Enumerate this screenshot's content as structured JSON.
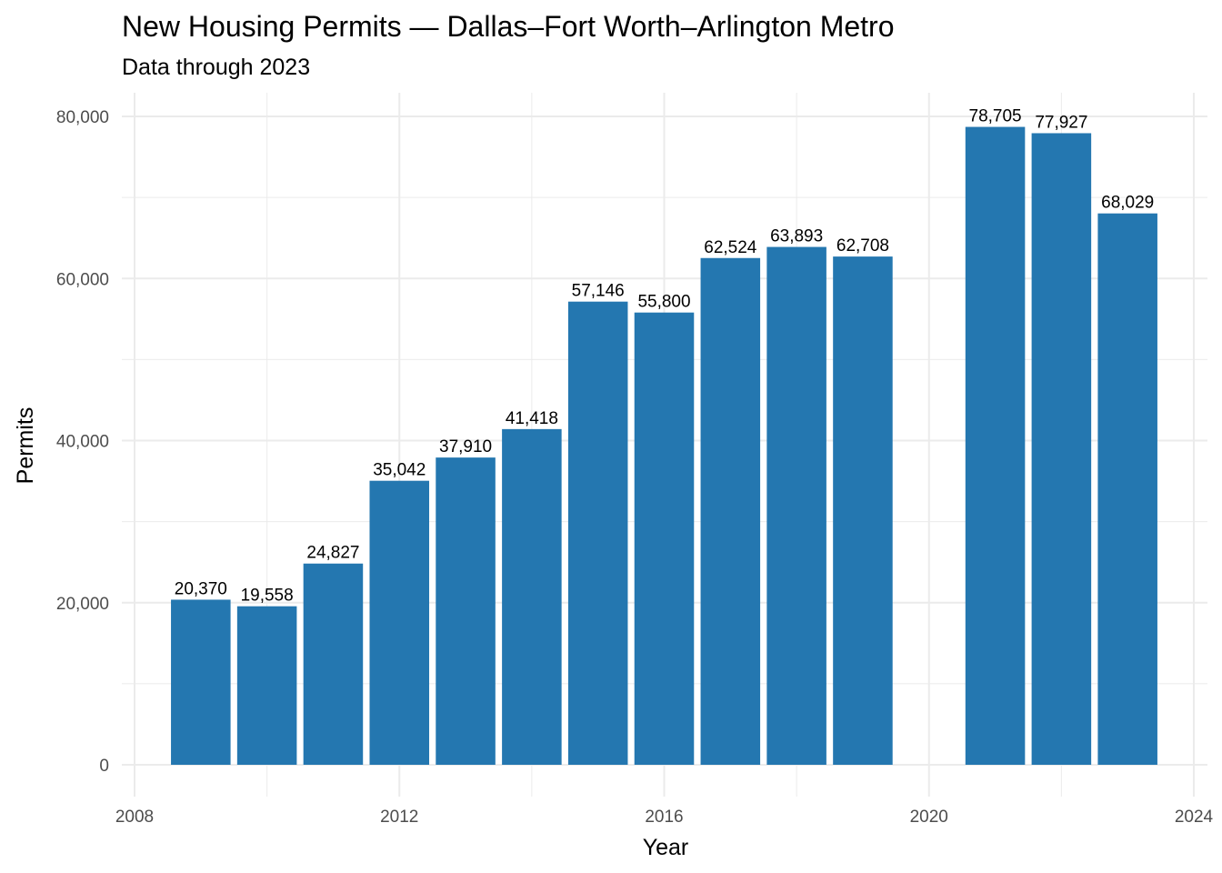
{
  "chart_data": {
    "type": "bar",
    "title": "New Housing Permits — Dallas–Fort Worth–Arlington Metro",
    "subtitle": "Data through 2023",
    "xlabel": "Year",
    "ylabel": "Permits",
    "x": [
      2009,
      2010,
      2011,
      2012,
      2013,
      2014,
      2015,
      2016,
      2017,
      2018,
      2019,
      2021,
      2022,
      2023
    ],
    "values": [
      20370,
      19558,
      24827,
      35042,
      37910,
      41418,
      57146,
      55800,
      62524,
      63893,
      62708,
      78705,
      77927,
      68029
    ],
    "value_labels": [
      "20,370",
      "19,558",
      "24,827",
      "35,042",
      "37,910",
      "41,418",
      "57,146",
      "55,800",
      "62,524",
      "63,893",
      "62,708",
      "78,705",
      "77,927",
      "68,029"
    ],
    "xlim": [
      2008,
      2024
    ],
    "ylim": [
      0,
      80000
    ],
    "x_ticks": [
      2008,
      2012,
      2016,
      2020,
      2024
    ],
    "x_tick_labels": [
      "2008",
      "2012",
      "2016",
      "2020",
      "2024"
    ],
    "y_ticks": [
      0,
      20000,
      40000,
      60000,
      80000
    ],
    "y_tick_labels": [
      "0",
      "20,000",
      "40,000",
      "60,000",
      "80,000"
    ],
    "grid": true,
    "legend": "none",
    "bar_color": "#2477b0",
    "grid_color": "#ebebeb"
  }
}
